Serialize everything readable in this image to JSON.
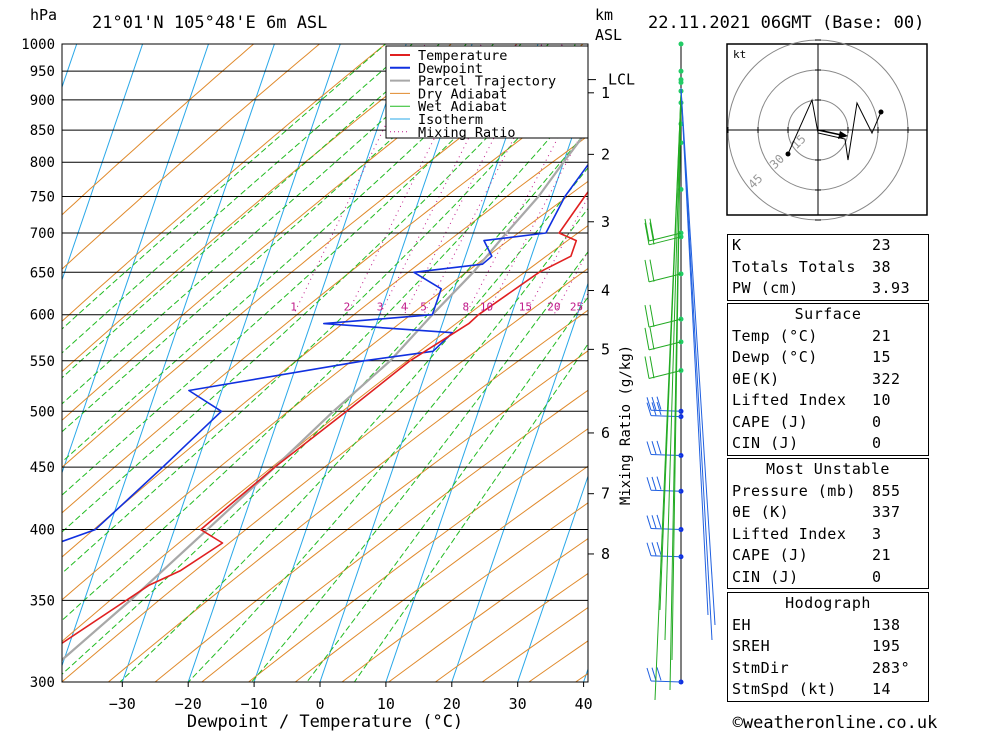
{
  "header": {
    "location": "21°01'N 105°48'E 6m ASL",
    "datetime": "22.11.2021 06GMT (Base: 00)",
    "left_unit": "hPa",
    "right_unit_1": "km",
    "right_unit_2": "ASL"
  },
  "footer": {
    "copyright": "©weatheronline.co.uk"
  },
  "colors": {
    "temperature": "#e02020",
    "dewpoint": "#1030e0",
    "parcel": "#a8a8a8",
    "dry_adiabat": "#e08a2c",
    "wet_adiabat": "#22bb22",
    "isotherm": "#2aa8e8",
    "mixing_ratio": "#c01a8a",
    "wind": "#22aa22"
  },
  "chart_data": {
    "type": "line",
    "title": "",
    "xlabel": "Dewpoint / Temperature (°C)",
    "ylabel": "hPa",
    "x_ticks": [
      -30,
      -20,
      -10,
      0,
      10,
      20,
      30,
      40
    ],
    "x_tick_labels": [
      "−30",
      "−20",
      "−10",
      "0",
      "10",
      "20",
      "30",
      "40"
    ],
    "pressure_levels": [
      300,
      350,
      400,
      450,
      500,
      550,
      600,
      650,
      700,
      750,
      800,
      850,
      900,
      950,
      1000
    ],
    "pressure_labels": [
      "300",
      "350",
      "400",
      "450",
      "500",
      "550",
      "600",
      "650",
      "700",
      "750",
      "800",
      "850",
      "900",
      "950",
      "1000"
    ],
    "km_ticks": [
      {
        "km": 8,
        "p": 382,
        "label": "8"
      },
      {
        "km": 7,
        "p": 428,
        "label": "7"
      },
      {
        "km": 6,
        "p": 480,
        "label": "6"
      },
      {
        "km": 5,
        "p": 562,
        "label": "5"
      },
      {
        "km": 4,
        "p": 628,
        "label": "4"
      },
      {
        "km": 3,
        "p": 715,
        "label": "3"
      },
      {
        "km": 2,
        "p": 812,
        "label": "2"
      },
      {
        "km": 1,
        "p": 912,
        "label": "1"
      }
    ],
    "lcl": {
      "p": 935,
      "label": "LCL"
    },
    "mixing_ratio_label": "Mixing Ratio (g/kg)",
    "mixing_ratio_values": [
      "1",
      "2",
      "3",
      "4",
      "5",
      "8",
      "10",
      "15",
      "20",
      "25"
    ],
    "legend": {
      "placement": "top-center",
      "items": [
        "Temperature",
        "Dewpoint",
        "Parcel Trajectory",
        "Dry Adiabat",
        "Wet Adiabat",
        "Isotherm",
        "Mixing Ratio"
      ]
    },
    "series": [
      {
        "name": "Temperature",
        "points": [
          [
            1000,
            21
          ],
          [
            960,
            18
          ],
          [
            940,
            20
          ],
          [
            920,
            22
          ],
          [
            900,
            21
          ],
          [
            870,
            20
          ],
          [
            850,
            19
          ],
          [
            800,
            17
          ],
          [
            750,
            15
          ],
          [
            700,
            13
          ],
          [
            690,
            16
          ],
          [
            670,
            16
          ],
          [
            650,
            12
          ],
          [
            600,
            5
          ],
          [
            590,
            4
          ],
          [
            550,
            -3
          ],
          [
            500,
            -10
          ],
          [
            450,
            -18
          ],
          [
            400,
            -26
          ],
          [
            390,
            -22
          ],
          [
            370,
            -27
          ],
          [
            360,
            -31
          ],
          [
            300,
            -48
          ]
        ]
      },
      {
        "name": "Dewpoint",
        "points": [
          [
            1000,
            15
          ],
          [
            960,
            14
          ],
          [
            940,
            15
          ],
          [
            920,
            16
          ],
          [
            900,
            17
          ],
          [
            850,
            16
          ],
          [
            800,
            14
          ],
          [
            750,
            12
          ],
          [
            700,
            11
          ],
          [
            690,
            2
          ],
          [
            670,
            4
          ],
          [
            660,
            3
          ],
          [
            650,
            -7
          ],
          [
            630,
            -2
          ],
          [
            600,
            -2
          ],
          [
            590,
            -18
          ],
          [
            580,
            2
          ],
          [
            560,
            0
          ],
          [
            550,
            -10
          ],
          [
            520,
            -35
          ],
          [
            500,
            -29
          ],
          [
            450,
            -35
          ],
          [
            400,
            -42
          ],
          [
            390,
            -47
          ],
          [
            360,
            -46
          ],
          [
            300,
            -59
          ]
        ]
      },
      {
        "name": "Parcel Trajectory",
        "points": [
          [
            1000,
            21
          ],
          [
            935,
            15
          ],
          [
            900,
            14
          ],
          [
            850,
            12
          ],
          [
            800,
            10
          ],
          [
            750,
            8
          ],
          [
            700,
            5
          ],
          [
            650,
            2
          ],
          [
            600,
            -2
          ],
          [
            550,
            -6
          ],
          [
            500,
            -12
          ],
          [
            450,
            -18
          ],
          [
            400,
            -25
          ],
          [
            350,
            -33
          ],
          [
            300,
            -43
          ]
        ]
      }
    ],
    "indices": [
      {
        "label": "K",
        "value": "23"
      },
      {
        "label": "Totals Totals",
        "value": "38"
      },
      {
        "label": "PW (cm)",
        "value": "3.93"
      }
    ],
    "surface": {
      "title": "Surface",
      "rows": [
        {
          "label": "Temp (°C)",
          "value": "21"
        },
        {
          "label": "Dewp (°C)",
          "value": "15"
        },
        {
          "label": "θE(K)",
          "value": "322"
        },
        {
          "label": "Lifted Index",
          "value": "10"
        },
        {
          "label": "CAPE (J)",
          "value": "0"
        },
        {
          "label": "CIN (J)",
          "value": "0"
        }
      ]
    },
    "most_unstable": {
      "title": "Most Unstable",
      "rows": [
        {
          "label": "Pressure (mb)",
          "value": "855"
        },
        {
          "label": "θE (K)",
          "value": "337"
        },
        {
          "label": "Lifted Index",
          "value": "3"
        },
        {
          "label": "CAPE (J)",
          "value": "21"
        },
        {
          "label": "CIN (J)",
          "value": "0"
        }
      ]
    },
    "hodograph": {
      "title": "Hodograph",
      "unit_label": "kt",
      "ring_labels": [
        "45",
        "30",
        "15"
      ],
      "rows": [
        {
          "label": "EH",
          "value": "138"
        },
        {
          "label": "SREH",
          "value": "195"
        },
        {
          "label": "StmDir",
          "value": "283°"
        },
        {
          "label": "StmSpd (kt)",
          "value": "14"
        }
      ],
      "trace": [
        [
          -10,
          -8
        ],
        [
          -2,
          10
        ],
        [
          0,
          -1
        ],
        [
          9,
          -3
        ],
        [
          10,
          -10
        ],
        [
          13,
          9
        ],
        [
          18,
          -1
        ],
        [
          21,
          6
        ]
      ]
    },
    "wind_levels": [
      300,
      380,
      400,
      430,
      460,
      495,
      500,
      540,
      570,
      595,
      648,
      695,
      700,
      760,
      830,
      860,
      895,
      915,
      930,
      935,
      950,
      1000
    ]
  }
}
